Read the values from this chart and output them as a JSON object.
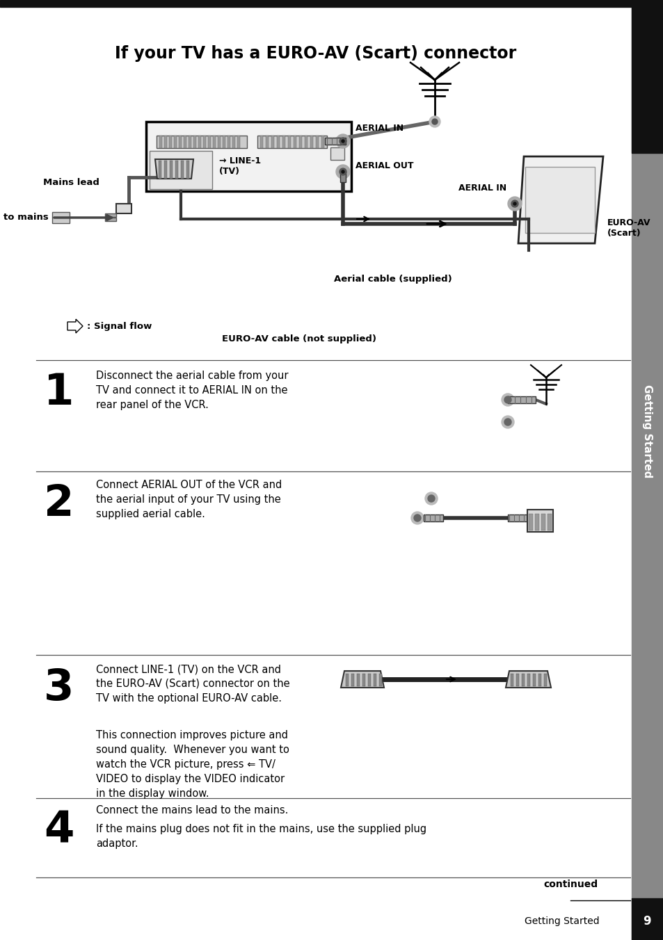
{
  "title": "If your TV has a EURO-AV (Scart) connector",
  "bg_color": "#ffffff",
  "sidebar_gray": "#888888",
  "page_number": "9",
  "chapter_label": "Getting Started",
  "continued_label": "continued",
  "step1_text": "Disconnect the aerial cable from your\nTV and connect it to AERIAL IN on the\nrear panel of the VCR.",
  "step2_text": "Connect AERIAL OUT of the VCR and\nthe aerial input of your TV using the\nsupplied aerial cable.",
  "step3_text1": "Connect LINE-1 (TV) on the VCR and\nthe EURO-AV (Scart) connector on the\nTV with the optional EURO-AV cable.",
  "step3_text2": "This connection improves picture and\nsound quality.  Whenever you want to\nwatch the VCR picture, press ⇐ TV/\nVIDEO to display the VIDEO indicator\nin the display window.",
  "step4_text1": "Connect the mains lead to the mains.",
  "step4_text2": "If the mains plug does not fit in the mains, use the supplied plug\nadaptor.",
  "label_aerial_in_vcr": "AERIAL IN",
  "label_aerial_out": "AERIAL OUT",
  "label_line1": "→ LINE-1\n(TV)",
  "label_mains_lead": "Mains lead",
  "label_to_mains": "to mains",
  "label_signal_flow": ": Signal flow",
  "label_aerial_cable": "Aerial cable (supplied)",
  "label_euro_av_cable": "EURO-AV cable (not supplied)",
  "label_aerial_in_tv": "AERIAL IN",
  "label_euro_av_scart": "EURO-AV\n(Scart)"
}
